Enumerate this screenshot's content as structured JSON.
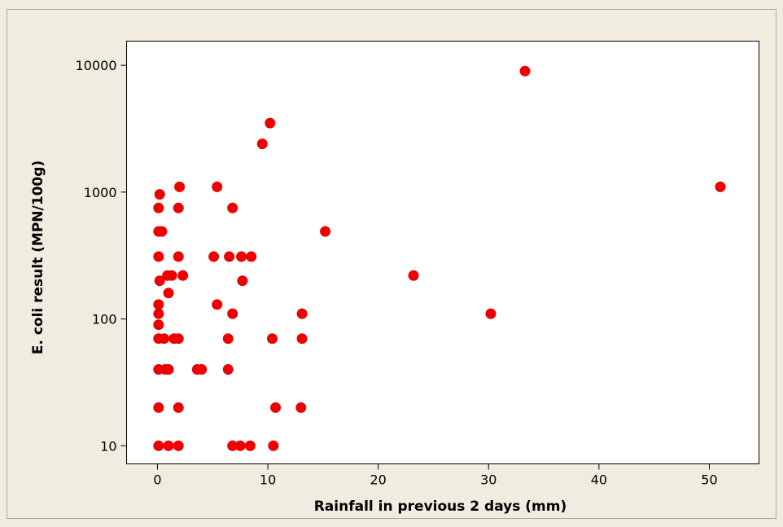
{
  "chart_data": {
    "type": "scatter",
    "title": "",
    "xlabel": "Rainfall in previous 2 days (mm)",
    "ylabel": "E. coli result (MPN/100g)",
    "xlim": [
      -2.8,
      54.5
    ],
    "ylim": [
      7.2,
      15500
    ],
    "yscale": "log",
    "xticks": [
      0,
      10,
      20,
      30,
      40,
      50
    ],
    "yticks": [
      10,
      100,
      1000,
      10000
    ],
    "xtick_labels": [
      "0",
      "10",
      "20",
      "30",
      "40",
      "50"
    ],
    "ytick_labels": [
      "10",
      "100",
      "1000",
      "10000"
    ],
    "grid": false,
    "legend": "none",
    "colors": {
      "background": "#f0ece0",
      "plot_area": "#ffffff",
      "marker": "#ee0000",
      "axis": "#000000"
    },
    "series": [
      {
        "points": [
          [
            0.1,
            10
          ],
          [
            0.1,
            20
          ],
          [
            0.1,
            40
          ],
          [
            0.1,
            70
          ],
          [
            0.1,
            90
          ],
          [
            0.1,
            110
          ],
          [
            0.1,
            130
          ],
          [
            0.1,
            310
          ],
          [
            0.1,
            490
          ],
          [
            0.1,
            750
          ],
          [
            0.2,
            200
          ],
          [
            0.2,
            960
          ],
          [
            0.4,
            490
          ],
          [
            0.6,
            70
          ],
          [
            0.7,
            40
          ],
          [
            0.9,
            220
          ],
          [
            1.0,
            10
          ],
          [
            1.0,
            40
          ],
          [
            1.0,
            160
          ],
          [
            1.3,
            220
          ],
          [
            1.5,
            70
          ],
          [
            1.9,
            10
          ],
          [
            1.9,
            20
          ],
          [
            1.9,
            70
          ],
          [
            1.9,
            310
          ],
          [
            1.9,
            750
          ],
          [
            2.0,
            1100
          ],
          [
            2.3,
            220
          ],
          [
            3.6,
            40
          ],
          [
            4.0,
            40
          ],
          [
            5.1,
            310
          ],
          [
            5.4,
            130
          ],
          [
            5.4,
            1100
          ],
          [
            6.4,
            40
          ],
          [
            6.4,
            70
          ],
          [
            6.5,
            310
          ],
          [
            6.8,
            10
          ],
          [
            6.8,
            110
          ],
          [
            6.8,
            750
          ],
          [
            7.5,
            10
          ],
          [
            7.6,
            310
          ],
          [
            7.7,
            200
          ],
          [
            8.4,
            10
          ],
          [
            8.5,
            310
          ],
          [
            9.5,
            2400
          ],
          [
            10.2,
            3500
          ],
          [
            10.4,
            70
          ],
          [
            10.5,
            10
          ],
          [
            10.7,
            20
          ],
          [
            13.0,
            20
          ],
          [
            13.1,
            70
          ],
          [
            13.1,
            110
          ],
          [
            15.2,
            490
          ],
          [
            23.2,
            220
          ],
          [
            30.2,
            110
          ],
          [
            33.3,
            9000
          ],
          [
            51.0,
            1100
          ]
        ]
      }
    ]
  }
}
